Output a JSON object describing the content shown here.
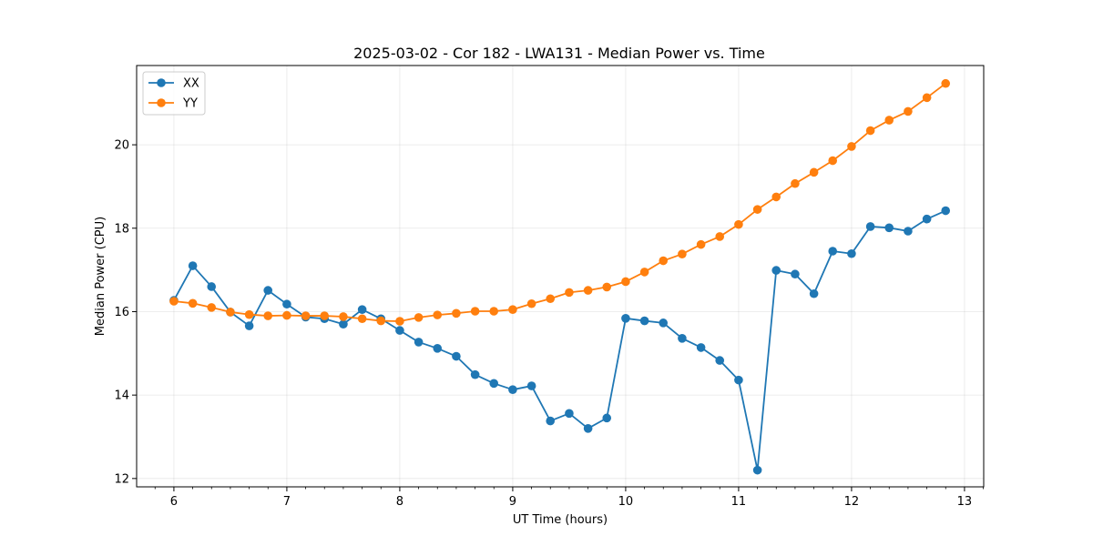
{
  "chart_data": {
    "type": "line",
    "title": "2025-03-02 - Cor 182 - LWA131 - Median Power vs. Time",
    "xlabel": "UT Time (hours)",
    "ylabel": "Median Power (CPU)",
    "xlim": [
      5.67,
      13.17
    ],
    "ylim": [
      11.8,
      21.9
    ],
    "xticks": [
      "6",
      "7",
      "8",
      "9",
      "10",
      "11",
      "12",
      "13"
    ],
    "yticks": [
      "12",
      "14",
      "16",
      "18",
      "20"
    ],
    "grid": true,
    "legend_position": "top-left",
    "x": [
      6.0,
      6.167,
      6.333,
      6.5,
      6.667,
      6.833,
      7.0,
      7.167,
      7.333,
      7.5,
      7.667,
      7.833,
      8.0,
      8.167,
      8.333,
      8.5,
      8.667,
      8.833,
      9.0,
      9.167,
      9.333,
      9.5,
      9.667,
      9.833,
      10.0,
      10.167,
      10.333,
      10.5,
      10.667,
      10.833,
      11.0,
      11.167,
      11.333,
      11.5,
      11.667,
      11.833,
      12.0,
      12.167,
      12.333,
      12.5,
      12.667,
      12.833
    ],
    "series": [
      {
        "name": "XX",
        "color": "#1f77b4",
        "values": [
          16.27,
          17.1,
          16.6,
          15.99,
          15.66,
          16.51,
          16.18,
          15.87,
          15.83,
          15.7,
          16.05,
          15.83,
          15.55,
          15.27,
          15.12,
          14.93,
          14.49,
          14.28,
          14.13,
          14.22,
          13.38,
          13.56,
          13.2,
          13.45,
          15.84,
          15.78,
          15.73,
          15.36,
          15.14,
          14.83,
          14.36,
          12.2,
          16.99,
          16.9,
          16.43,
          17.45,
          17.39,
          18.04,
          18.01,
          17.93,
          18.22,
          18.42
        ]
      },
      {
        "name": "YY",
        "color": "#ff7f0e",
        "values": [
          16.25,
          16.2,
          16.1,
          15.99,
          15.93,
          15.9,
          15.91,
          15.9,
          15.9,
          15.88,
          15.83,
          15.78,
          15.77,
          15.86,
          15.92,
          15.96,
          16.01,
          16.01,
          16.05,
          16.19,
          16.31,
          16.46,
          16.51,
          16.59,
          16.72,
          16.95,
          17.22,
          17.38,
          17.61,
          17.8,
          18.09,
          18.45,
          18.75,
          19.07,
          19.34,
          19.62,
          19.96,
          20.34,
          20.59,
          20.8,
          21.13,
          21.47
        ]
      }
    ]
  }
}
